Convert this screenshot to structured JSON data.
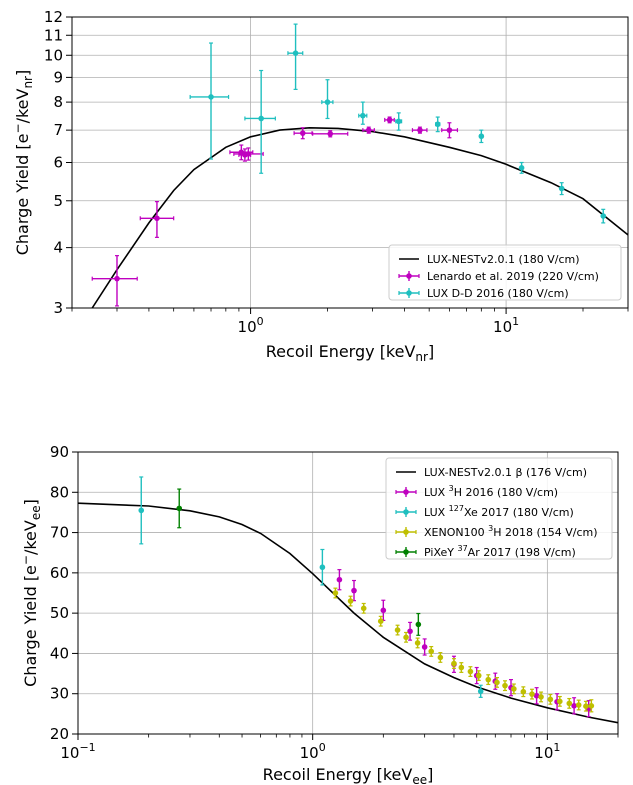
{
  "chart_data": [
    {
      "type": "scatter",
      "xscale": "log",
      "yscale": "log",
      "xlim": [
        0.2,
        30
      ],
      "ylim": [
        3,
        12
      ],
      "grid": true,
      "legend_position": "lower-right",
      "xlabel": {
        "main": "Recoil Energy [keV",
        "sub": "nr",
        "end": "]"
      },
      "ylabel": {
        "main": "Charge Yield [e",
        "sup": "−",
        "mid": "/keV",
        "sub": "nr",
        "end": "]"
      },
      "x_ticks": [
        {
          "value": 1,
          "base": "10",
          "exp": "0"
        },
        {
          "value": 10,
          "base": "10",
          "exp": "1"
        }
      ],
      "y_ticks": [
        3,
        4,
        5,
        6,
        7,
        8,
        9,
        10,
        11,
        12
      ],
      "curve": {
        "name": "LUX-NESTv2.0.1 (180 V/cm)",
        "color": "#000000",
        "x": [
          0.24,
          0.3,
          0.4,
          0.5,
          0.6,
          0.8,
          1.0,
          1.3,
          1.7,
          2.2,
          3.0,
          4.0,
          6.0,
          8.0,
          10.0,
          15.0,
          20.0,
          30.0
        ],
        "y": [
          3.0,
          3.6,
          4.5,
          5.25,
          5.8,
          6.45,
          6.78,
          7.0,
          7.08,
          7.06,
          6.95,
          6.78,
          6.45,
          6.2,
          5.95,
          5.45,
          5.05,
          4.25
        ]
      },
      "series": [
        {
          "name": "Lenardo et al. 2019 (220 V/cm)",
          "color": "#bf00bf",
          "points": [
            {
              "x": 0.3,
              "y": 3.45,
              "xerr": [
                0.06,
                0.06
              ],
              "yerr": [
                0.42,
                0.4
              ]
            },
            {
              "x": 0.43,
              "y": 4.6,
              "xerr": [
                0.06,
                0.07
              ],
              "yerr": [
                0.4,
                0.38
              ]
            },
            {
              "x": 0.92,
              "y": 6.3,
              "xerr": [
                0.09,
                0.1
              ],
              "yerr": [
                0.22,
                0.22
              ]
            },
            {
              "x": 0.95,
              "y": 6.22,
              "xerr": [
                0.05,
                0.05
              ],
              "yerr": [
                0.18,
                0.18
              ]
            },
            {
              "x": 0.98,
              "y": 6.25,
              "xerr": [
                0.12,
                0.14
              ],
              "yerr": [
                0.18,
                0.18
              ]
            },
            {
              "x": 1.6,
              "y": 6.9,
              "xerr": [
                0.12,
                0.14
              ],
              "yerr": [
                0.18,
                0.18
              ]
            },
            {
              "x": 2.05,
              "y": 6.88,
              "xerr": [
                0.3,
                0.35
              ],
              "yerr": [
                0.1,
                0.1
              ]
            },
            {
              "x": 2.9,
              "y": 7.0,
              "xerr": [
                0.15,
                0.15
              ],
              "yerr": [
                0.1,
                0.1
              ]
            },
            {
              "x": 3.5,
              "y": 7.35,
              "xerr": [
                0.15,
                0.15
              ],
              "yerr": [
                0.1,
                0.1
              ]
            },
            {
              "x": 4.6,
              "y": 7.0,
              "xerr": [
                0.3,
                0.3
              ],
              "yerr": [
                0.1,
                0.1
              ]
            },
            {
              "x": 6.0,
              "y": 7.0,
              "xerr": [
                0.4,
                0.45
              ],
              "yerr": [
                0.25,
                0.25
              ]
            }
          ]
        },
        {
          "name": "LUX D-D 2016 (180 V/cm)",
          "color": "#1fbfbf",
          "points": [
            {
              "x": 0.7,
              "y": 8.2,
              "xerr": [
                0.12,
                0.12
              ],
              "yerr": [
                2.1,
                2.4
              ]
            },
            {
              "x": 1.1,
              "y": 7.4,
              "xerr": [
                0.15,
                0.15
              ],
              "yerr": [
                1.7,
                1.9
              ]
            },
            {
              "x": 1.5,
              "y": 10.1,
              "xerr": [
                0.1,
                0.1
              ],
              "yerr": [
                1.6,
                1.5
              ]
            },
            {
              "x": 2.0,
              "y": 8.0,
              "xerr": [
                0.1,
                0.1
              ],
              "yerr": [
                0.6,
                0.9
              ]
            },
            {
              "x": 2.75,
              "y": 7.5,
              "xerr": [
                0.1,
                0.1
              ],
              "yerr": [
                0.3,
                0.5
              ]
            },
            {
              "x": 3.8,
              "y": 7.3,
              "xerr": [
                0.1,
                0.1
              ],
              "yerr": [
                0.3,
                0.3
              ]
            },
            {
              "x": 5.4,
              "y": 7.2,
              "xerr": [
                0.1,
                0.1
              ],
              "yerr": [
                0.25,
                0.25
              ]
            },
            {
              "x": 8.0,
              "y": 6.8,
              "xerr": [
                0.1,
                0.1
              ],
              "yerr": [
                0.2,
                0.2
              ]
            },
            {
              "x": 11.5,
              "y": 5.85,
              "xerr": [
                0.1,
                0.1
              ],
              "yerr": [
                0.15,
                0.15
              ]
            },
            {
              "x": 16.5,
              "y": 5.3,
              "xerr": [
                0.1,
                0.1
              ],
              "yerr": [
                0.15,
                0.15
              ]
            },
            {
              "x": 24.0,
              "y": 4.65,
              "xerr": [
                0.1,
                0.1
              ],
              "yerr": [
                0.15,
                0.15
              ]
            }
          ]
        }
      ]
    },
    {
      "type": "scatter",
      "xscale": "log",
      "yscale": "linear",
      "xlim": [
        0.1,
        20
      ],
      "ylim": [
        20,
        90
      ],
      "grid": true,
      "legend_position": "top-right",
      "xlabel": {
        "main": "Recoil Energy [keV",
        "sub": "ee",
        "end": "]"
      },
      "ylabel": {
        "main": "Charge Yield [e",
        "sup": "−",
        "mid": "/keV",
        "sub": "ee",
        "end": "]"
      },
      "x_ticks": [
        {
          "value": 0.1,
          "base": "10",
          "exp": "−1"
        },
        {
          "value": 1,
          "base": "10",
          "exp": "0"
        },
        {
          "value": 10,
          "base": "10",
          "exp": "1"
        }
      ],
      "y_ticks": [
        20,
        30,
        40,
        50,
        60,
        70,
        80,
        90
      ],
      "curve": {
        "name": "LUX-NESTv2.0.1 β (176 V/cm)",
        "color": "#000000",
        "x": [
          0.1,
          0.2,
          0.3,
          0.4,
          0.5,
          0.6,
          0.8,
          1.0,
          1.2,
          1.5,
          2.0,
          3.0,
          4.0,
          5.0,
          7.0,
          10.0,
          15.0,
          20.0
        ],
        "y": [
          77.3,
          76.6,
          75.4,
          73.9,
          72.0,
          69.8,
          64.8,
          59.8,
          55.4,
          50.0,
          44.0,
          37.4,
          34.0,
          31.7,
          28.9,
          26.5,
          24.2,
          22.8
        ]
      },
      "series": [
        {
          "name": "LUX 3H 2016 (180 V/cm)",
          "label_parts": {
            "pre": "LUX ",
            "sup": "3",
            "post": "H 2016 (180 V/cm)"
          },
          "color": "#bf00bf",
          "points": [
            {
              "x": 1.3,
              "y": 58.3,
              "yerr": [
                2.5,
                2.5
              ]
            },
            {
              "x": 1.5,
              "y": 55.6,
              "yerr": [
                2.5,
                2.5
              ]
            },
            {
              "x": 2.0,
              "y": 50.7,
              "yerr": [
                2.5,
                2.5
              ]
            },
            {
              "x": 2.6,
              "y": 45.5,
              "yerr": [
                2.2,
                2.2
              ]
            },
            {
              "x": 3.0,
              "y": 41.6,
              "yerr": [
                2.0,
                2.0
              ]
            },
            {
              "x": 4.0,
              "y": 37.3,
              "yerr": [
                2.0,
                2.0
              ]
            },
            {
              "x": 5.0,
              "y": 34.5,
              "yerr": [
                2.0,
                2.0
              ]
            },
            {
              "x": 6.0,
              "y": 33.1,
              "yerr": [
                2.0,
                2.0
              ]
            },
            {
              "x": 7.0,
              "y": 31.5,
              "yerr": [
                2.0,
                2.0
              ]
            },
            {
              "x": 9.0,
              "y": 29.5,
              "yerr": [
                2.0,
                2.0
              ]
            },
            {
              "x": 11.0,
              "y": 28.0,
              "yerr": [
                2.0,
                2.0
              ]
            },
            {
              "x": 13.0,
              "y": 27.0,
              "yerr": [
                2.0,
                2.0
              ]
            },
            {
              "x": 15.0,
              "y": 26.3,
              "yerr": [
                2.0,
                2.0
              ]
            }
          ]
        },
        {
          "name": "LUX 127Xe 2017 (180 V/cm)",
          "label_parts": {
            "pre": "LUX ",
            "sup": "127",
            "post": "Xe 2017 (180 V/cm)"
          },
          "color": "#1fbfbf",
          "points": [
            {
              "x": 0.186,
              "y": 75.5,
              "yerr": [
                8.3,
                8.3
              ]
            },
            {
              "x": 1.1,
              "y": 61.4,
              "yerr": [
                4.4,
                4.4
              ]
            },
            {
              "x": 5.2,
              "y": 30.6,
              "yerr": [
                1.5,
                1.5
              ]
            }
          ]
        },
        {
          "name": "XENON100 3H 2018 (154 V/cm)",
          "label_parts": {
            "pre": "XENON100 ",
            "sup": "3",
            "post": "H 2018 (154 V/cm)"
          },
          "color": "#bfbf00",
          "points": [
            {
              "x": 1.25,
              "y": 55.0,
              "yerr": [
                1.2,
                1.2
              ]
            },
            {
              "x": 1.45,
              "y": 53.0,
              "yerr": [
                1.2,
                1.2
              ]
            },
            {
              "x": 1.65,
              "y": 51.2,
              "yerr": [
                1.2,
                1.2
              ]
            },
            {
              "x": 1.95,
              "y": 48.0,
              "yerr": [
                1.2,
                1.2
              ]
            },
            {
              "x": 2.3,
              "y": 45.8,
              "yerr": [
                1.2,
                1.2
              ]
            },
            {
              "x": 2.5,
              "y": 44.0,
              "yerr": [
                1.2,
                1.2
              ]
            },
            {
              "x": 2.8,
              "y": 42.6,
              "yerr": [
                1.2,
                1.2
              ]
            },
            {
              "x": 3.2,
              "y": 40.5,
              "yerr": [
                1.2,
                1.2
              ]
            },
            {
              "x": 3.5,
              "y": 39.0,
              "yerr": [
                1.2,
                1.2
              ]
            },
            {
              "x": 4.0,
              "y": 37.5,
              "yerr": [
                1.2,
                1.2
              ]
            },
            {
              "x": 4.3,
              "y": 36.5,
              "yerr": [
                1.2,
                1.2
              ]
            },
            {
              "x": 4.7,
              "y": 35.5,
              "yerr": [
                1.2,
                1.2
              ]
            },
            {
              "x": 5.1,
              "y": 34.5,
              "yerr": [
                1.2,
                1.2
              ]
            },
            {
              "x": 5.6,
              "y": 33.5,
              "yerr": [
                1.2,
                1.2
              ]
            },
            {
              "x": 6.1,
              "y": 32.8,
              "yerr": [
                1.2,
                1.2
              ]
            },
            {
              "x": 6.6,
              "y": 32.0,
              "yerr": [
                1.2,
                1.2
              ]
            },
            {
              "x": 7.2,
              "y": 31.2,
              "yerr": [
                1.2,
                1.2
              ]
            },
            {
              "x": 7.9,
              "y": 30.5,
              "yerr": [
                1.2,
                1.2
              ]
            },
            {
              "x": 8.6,
              "y": 29.9,
              "yerr": [
                1.2,
                1.2
              ]
            },
            {
              "x": 9.4,
              "y": 29.2,
              "yerr": [
                1.2,
                1.2
              ]
            },
            {
              "x": 10.3,
              "y": 28.6,
              "yerr": [
                1.2,
                1.2
              ]
            },
            {
              "x": 11.3,
              "y": 28.1,
              "yerr": [
                1.2,
                1.2
              ]
            },
            {
              "x": 12.4,
              "y": 27.6,
              "yerr": [
                1.2,
                1.2
              ]
            },
            {
              "x": 13.6,
              "y": 27.2,
              "yerr": [
                1.2,
                1.2
              ]
            },
            {
              "x": 14.6,
              "y": 26.9,
              "yerr": [
                1.2,
                1.2
              ]
            },
            {
              "x": 15.4,
              "y": 27.0,
              "yerr": [
                1.5,
                1.5
              ]
            }
          ]
        },
        {
          "name": "PiXeY 37Ar 2017 (198 V/cm)",
          "label_parts": {
            "pre": "PiXeY ",
            "sup": "37",
            "post": "Ar 2017 (198 V/cm)"
          },
          "color": "#008000",
          "points": [
            {
              "x": 0.27,
              "y": 76.0,
              "yerr": [
                4.8,
                4.8
              ]
            },
            {
              "x": 2.82,
              "y": 47.2,
              "yerr": [
                2.7,
                2.7
              ]
            }
          ]
        }
      ]
    }
  ]
}
